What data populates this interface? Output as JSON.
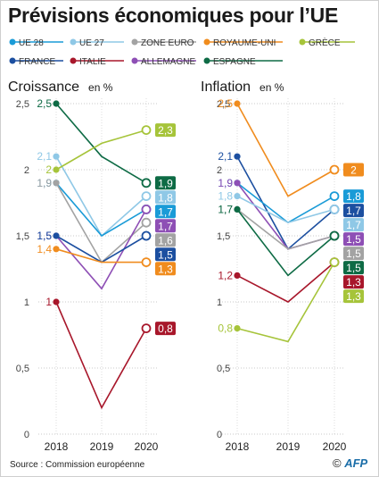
{
  "title": "Prévisions économiques pour l’UE",
  "source": "Source : Commission européenne",
  "logo": {
    "copyright": "©",
    "brand": "AFP"
  },
  "legend": [
    {
      "label": "UE 28",
      "color": "#1a9bd7"
    },
    {
      "label": "UE 27",
      "color": "#8fc8e6"
    },
    {
      "label": "ZONE EURO",
      "color": "#a3a3a3"
    },
    {
      "label": "ROYAUME-UNI",
      "color": "#f08c1e"
    },
    {
      "label": "GRÈCE",
      "color": "#a6c43a"
    },
    {
      "label": "FRANCE",
      "color": "#1c4fa0"
    },
    {
      "label": "ITALIE",
      "color": "#a8172b"
    },
    {
      "label": "ALLEMAGNE",
      "color": "#8e4fb5"
    },
    {
      "label": "ESPAGNE",
      "color": "#0e6b45"
    }
  ],
  "chart_data": [
    {
      "type": "line",
      "title": "Croissance",
      "unit": "en %",
      "x": [
        "2018",
        "2019",
        "2020"
      ],
      "yticks": [
        "2,5",
        "2",
        "1,5",
        "1",
        "0,5",
        "0"
      ],
      "ylim": [
        0,
        2.5
      ],
      "series": [
        {
          "name": "ESPAGNE",
          "color": "#0e6b45",
          "values": [
            2.5,
            2.1,
            1.9
          ],
          "start_label": "2,5",
          "end_label": "1,9"
        },
        {
          "name": "UE 27",
          "color": "#8fc8e6",
          "values": [
            2.1,
            1.5,
            1.8
          ],
          "start_label": "2,1",
          "end_label": "1,8"
        },
        {
          "name": "GRÈCE",
          "color": "#a6c43a",
          "values": [
            2.0,
            2.2,
            2.3
          ],
          "start_label": "2",
          "end_label": "2,3"
        },
        {
          "name": "UE 28",
          "color": "#1a9bd7",
          "values": [
            1.9,
            1.5,
            1.7
          ],
          "start_label": "1,9",
          "end_label": "1,7"
        },
        {
          "name": "ZONE EURO",
          "color": "#a3a3a3",
          "values": [
            1.9,
            1.3,
            1.6
          ],
          "start_label": "1,9",
          "end_label": "1,6"
        },
        {
          "name": "ALLEMAGNE",
          "color": "#8e4fb5",
          "values": [
            1.5,
            1.1,
            1.7
          ],
          "start_label": "1,5",
          "end_label": "1,7"
        },
        {
          "name": "FRANCE",
          "color": "#1c4fa0",
          "values": [
            1.5,
            1.3,
            1.5
          ],
          "start_label": "1,5",
          "end_label": "1,5"
        },
        {
          "name": "ROYAUME-UNI",
          "color": "#f08c1e",
          "values": [
            1.4,
            1.3,
            1.3
          ],
          "start_label": "1,4",
          "end_label": "1,3"
        },
        {
          "name": "ITALIE",
          "color": "#a8172b",
          "values": [
            1.0,
            0.2,
            0.8
          ],
          "start_label": "1",
          "end_label": "0,8"
        }
      ]
    },
    {
      "type": "line",
      "title": "Inflation",
      "unit": "en %",
      "x": [
        "2018",
        "2019",
        "2020"
      ],
      "yticks": [
        "2,5",
        "2",
        "1,5",
        "1",
        "0,5",
        "0"
      ],
      "ylim": [
        0,
        2.5
      ],
      "series": [
        {
          "name": "ROYAUME-UNI",
          "color": "#f08c1e",
          "values": [
            2.5,
            1.8,
            2.0
          ],
          "start_label": "2,5",
          "end_label": "2"
        },
        {
          "name": "FRANCE",
          "color": "#1c4fa0",
          "values": [
            2.1,
            1.4,
            1.7
          ],
          "start_label": "2,1",
          "end_label": "1,7"
        },
        {
          "name": "UE 28",
          "color": "#1a9bd7",
          "values": [
            1.9,
            1.6,
            1.8
          ],
          "start_label": "1,9",
          "end_label": "1,8"
        },
        {
          "name": "ALLEMAGNE",
          "color": "#8e4fb5",
          "values": [
            1.9,
            1.4,
            1.5
          ],
          "start_label": "1,9",
          "end_label": "1,5"
        },
        {
          "name": "UE 27",
          "color": "#8fc8e6",
          "values": [
            1.8,
            1.6,
            1.7
          ],
          "start_label": "1,8",
          "end_label": "1,7"
        },
        {
          "name": "ZONE EURO",
          "color": "#a3a3a3",
          "values": [
            1.7,
            1.4,
            1.5
          ],
          "start_label": "1,7",
          "end_label": "1,5"
        },
        {
          "name": "ESPAGNE",
          "color": "#0e6b45",
          "values": [
            1.7,
            1.2,
            1.5
          ],
          "start_label": "1,7",
          "end_label": "1,5"
        },
        {
          "name": "ITALIE",
          "color": "#a8172b",
          "values": [
            1.2,
            1.0,
            1.3
          ],
          "start_label": "1,2",
          "end_label": "1,3"
        },
        {
          "name": "GRÈCE",
          "color": "#a6c43a",
          "values": [
            0.8,
            0.7,
            1.3
          ],
          "start_label": "0,8",
          "end_label": "1,3"
        }
      ]
    }
  ]
}
